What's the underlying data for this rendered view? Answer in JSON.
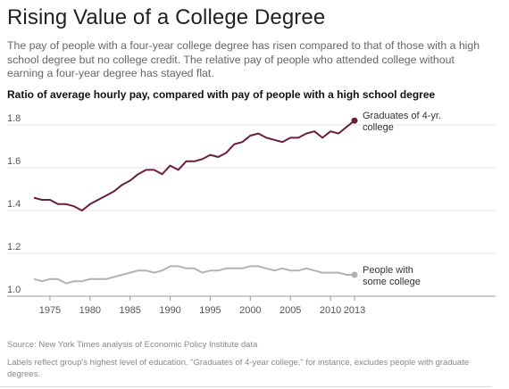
{
  "header": {
    "title": "Rising Value of a College Degree",
    "subtitle": "The pay of people with a four-year college degree has risen compared to that of those with a high school degree but no college credit. The relative pay of people who attended college without earning a four-year degree has stayed flat."
  },
  "chart_data": {
    "type": "line",
    "title": "Ratio of average hourly pay, compared with pay of people with a high school degree",
    "xlabel": "",
    "ylabel": "",
    "xlim": [
      1973,
      2013
    ],
    "ylim": [
      1.0,
      1.85
    ],
    "x_ticks": [
      "1975",
      "1980",
      "1985",
      "1990",
      "1995",
      "2000",
      "2005",
      "2010",
      "2013"
    ],
    "y_ticks": [
      "1.0",
      "1.2",
      "1.4",
      "1.6",
      "1.8"
    ],
    "x": [
      1973,
      1974,
      1975,
      1976,
      1977,
      1978,
      1979,
      1980,
      1981,
      1982,
      1983,
      1984,
      1985,
      1986,
      1987,
      1988,
      1989,
      1990,
      1991,
      1992,
      1993,
      1994,
      1995,
      1996,
      1997,
      1998,
      1999,
      2000,
      2001,
      2002,
      2003,
      2004,
      2005,
      2006,
      2007,
      2008,
      2009,
      2010,
      2011,
      2012,
      2013
    ],
    "series": [
      {
        "name": "Graduates of 4-yr. college",
        "label_lines": [
          "Graduates of 4-yr.",
          "college"
        ],
        "color": "#6b1d3f",
        "values": [
          1.46,
          1.45,
          1.45,
          1.43,
          1.43,
          1.42,
          1.4,
          1.43,
          1.45,
          1.47,
          1.49,
          1.52,
          1.54,
          1.57,
          1.59,
          1.59,
          1.57,
          1.61,
          1.59,
          1.63,
          1.63,
          1.64,
          1.66,
          1.65,
          1.67,
          1.71,
          1.72,
          1.75,
          1.76,
          1.74,
          1.73,
          1.72,
          1.74,
          1.74,
          1.76,
          1.77,
          1.74,
          1.77,
          1.76,
          1.79,
          1.82
        ]
      },
      {
        "name": "People with some college",
        "label_lines": [
          "People with",
          "some college"
        ],
        "color": "#b3b3b3",
        "values": [
          1.08,
          1.07,
          1.08,
          1.08,
          1.06,
          1.07,
          1.07,
          1.08,
          1.08,
          1.08,
          1.09,
          1.1,
          1.11,
          1.12,
          1.12,
          1.11,
          1.12,
          1.14,
          1.14,
          1.13,
          1.13,
          1.11,
          1.12,
          1.12,
          1.13,
          1.13,
          1.13,
          1.14,
          1.14,
          1.13,
          1.12,
          1.13,
          1.12,
          1.12,
          1.13,
          1.12,
          1.11,
          1.11,
          1.11,
          1.1,
          1.1
        ]
      }
    ],
    "grid": "horizontal"
  },
  "footer": {
    "source": "Source: New York Times analysis of Economic Policy Institute data",
    "note": "Labels reflect group's highest level of education. \"Graduates of 4-year college,\" for instance, excludes people with graduate degrees."
  }
}
